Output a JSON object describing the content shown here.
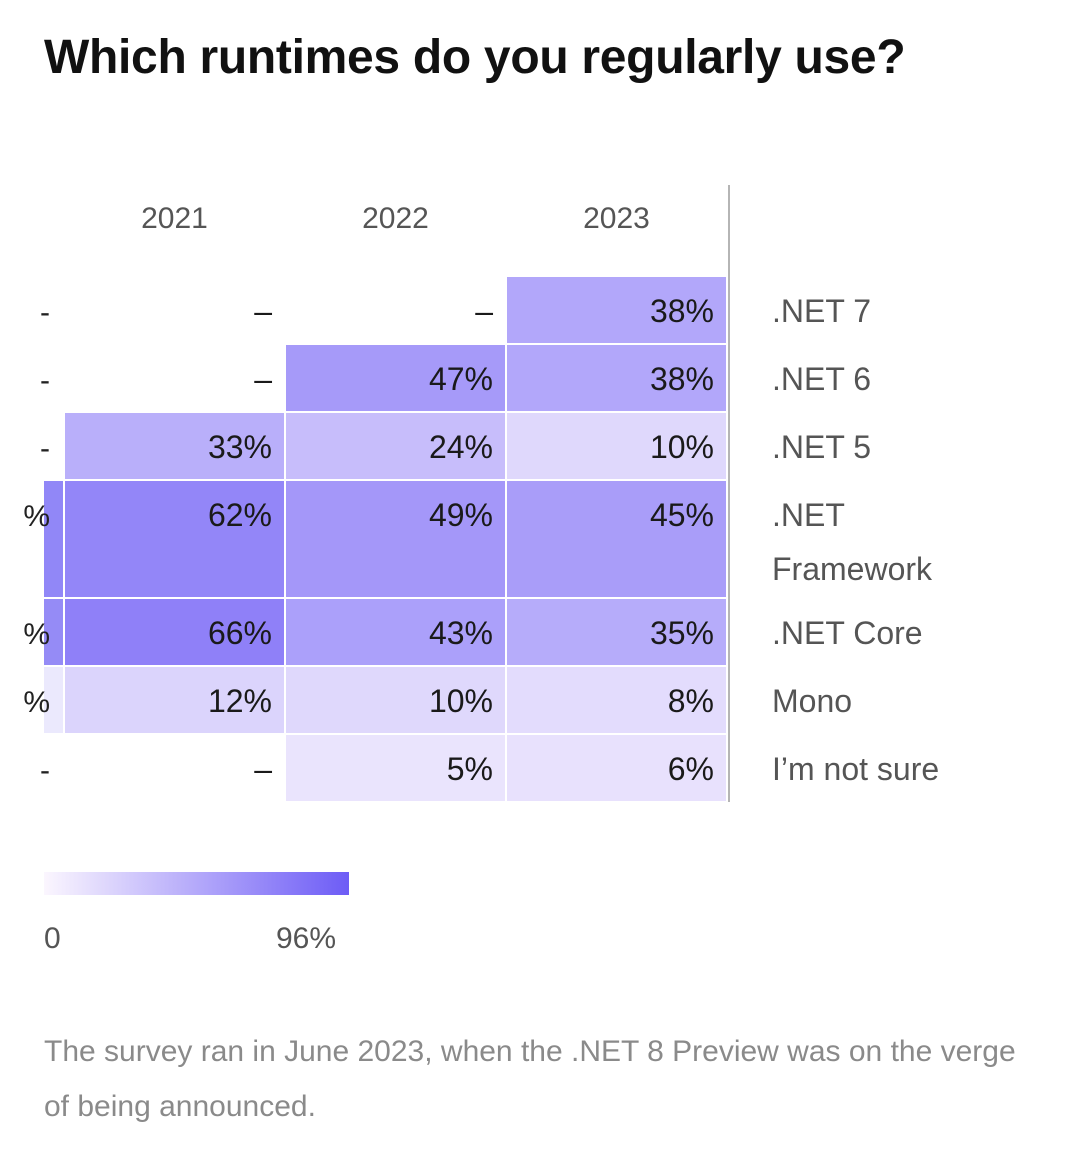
{
  "chart_data": {
    "type": "heatmap",
    "title": "Which runtimes do you regularly use?",
    "years": [
      "2021",
      "2022",
      "2023"
    ],
    "rows": [
      {
        "label": ".NET 7",
        "values": [
          "–",
          "–",
          "38%"
        ]
      },
      {
        "label": ".NET 6",
        "values": [
          "–",
          "47%",
          "38%"
        ]
      },
      {
        "label": ".NET 5",
        "values": [
          "33%",
          "24%",
          "10%"
        ]
      },
      {
        "label": ".NET Framework",
        "values": [
          "62%",
          "49%",
          "45%"
        ]
      },
      {
        "label": ".NET Core",
        "values": [
          "66%",
          "43%",
          "35%"
        ]
      },
      {
        "label": "Mono",
        "values": [
          "12%",
          "10%",
          "8%"
        ]
      },
      {
        "label": "I’m not sure",
        "values": [
          "–",
          "5%",
          "6%"
        ]
      }
    ],
    "clipped_column": {
      "values": [
        "-",
        "-",
        "-",
        "%",
        "%",
        "%",
        "-"
      ],
      "colors": [
        null,
        null,
        null,
        "#9187f7",
        "#958bf6",
        "#ebe9fd",
        null
      ]
    },
    "color_scale": {
      "min": 0,
      "max": 96,
      "min_label": "0",
      "max_label": "96%",
      "min_color": "#fbf6fe",
      "max_color": "#6d5cf6"
    }
  },
  "footnote": "The survey ran in June 2023, when the .NET 8 Preview was on the verge of being announced."
}
